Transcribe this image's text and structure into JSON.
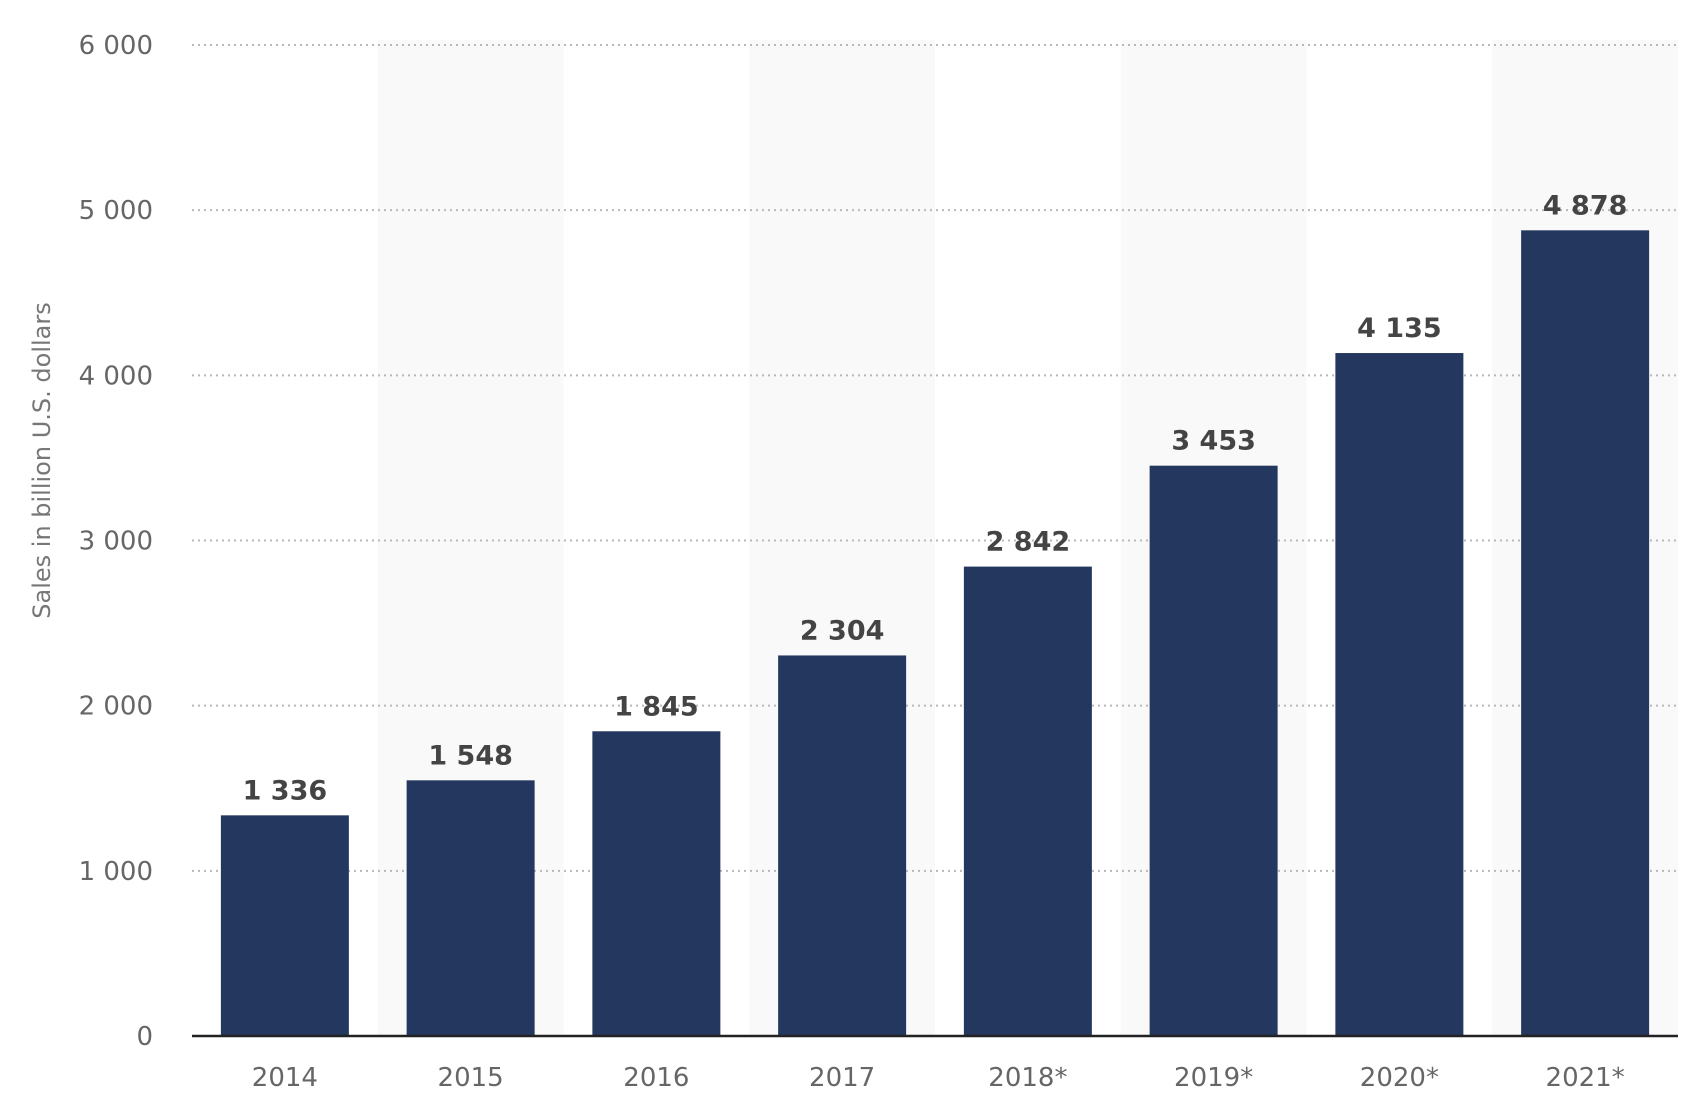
{
  "colors": {
    "bar": "#24375e",
    "band": "#f9f9f9",
    "grid": "#b8b8b8"
  },
  "chart_data": {
    "type": "bar",
    "title": "",
    "xlabel": "",
    "ylabel": "Sales in billion U.S. dollars",
    "categories": [
      "2014",
      "2015",
      "2016",
      "2017",
      "2018*",
      "2019*",
      "2020*",
      "2021*"
    ],
    "values": [
      1336,
      1548,
      1845,
      2304,
      2842,
      3453,
      4135,
      4878
    ],
    "value_labels": [
      "1 336",
      "1 548",
      "1 845",
      "2 304",
      "2 842",
      "3 453",
      "4 135",
      "4 878"
    ],
    "ylim": [
      0,
      6000
    ],
    "yticks": [
      0,
      1000,
      2000,
      3000,
      4000,
      5000,
      6000
    ],
    "ytick_labels": [
      "0",
      "1 000",
      "2 000",
      "3 000",
      "4 000",
      "5 000",
      "6 000"
    ],
    "grid": true,
    "legend": "none"
  }
}
